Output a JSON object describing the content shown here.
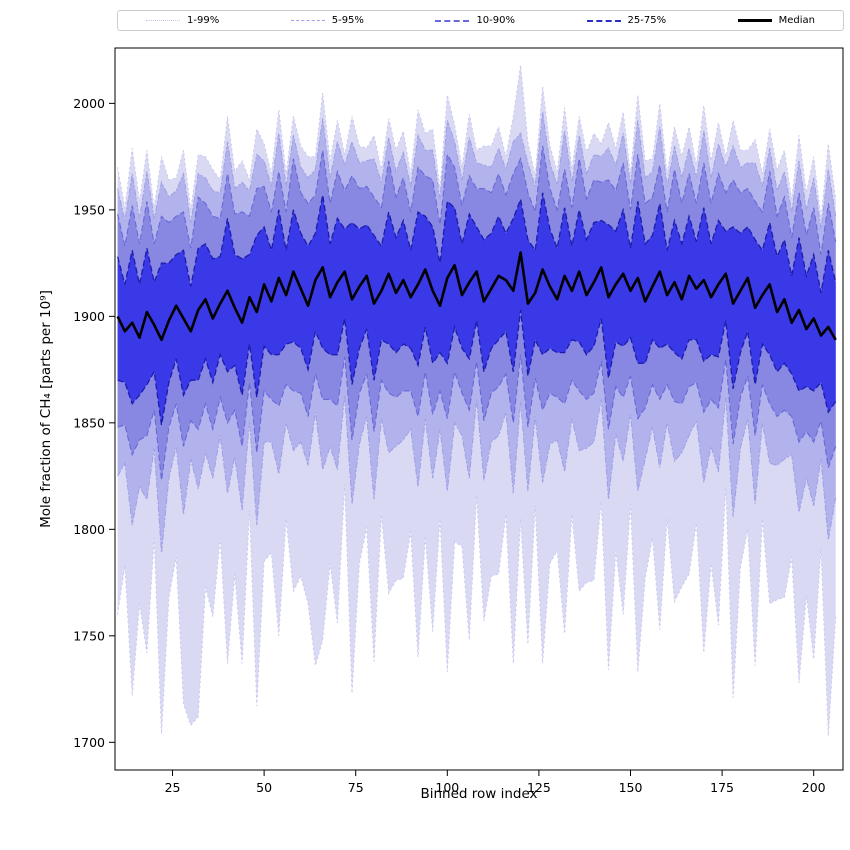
{
  "legend": {
    "entries": [
      {
        "label": "1-99%",
        "color": "#c6c6ef",
        "style": "dotted",
        "thickness": 1
      },
      {
        "label": "5-95%",
        "color": "#9f9fe6",
        "style": "dashed",
        "thickness": 1
      },
      {
        "label": "10-90%",
        "color": "#6868d8",
        "style": "dashed",
        "thickness": 2
      },
      {
        "label": "25-75%",
        "color": "#2c2cc8",
        "style": "dashed",
        "thickness": 2
      },
      {
        "label": "Median",
        "color": "#000000",
        "style": "solid",
        "thickness": 3
      }
    ]
  },
  "chart_data": {
    "type": "area",
    "title": "",
    "xlabel": "Binned row index",
    "ylabel": "Mole fraction of CH₄ [parts per 10⁹]",
    "grid": false,
    "legend_position": "top",
    "xlim": [
      9.3,
      208
    ],
    "ylim": [
      1687,
      2026
    ],
    "x_ticks": [
      25,
      50,
      75,
      100,
      125,
      150,
      175,
      200
    ],
    "y_ticks": [
      1700,
      1750,
      1800,
      1850,
      1900,
      1950,
      2000
    ],
    "x": [
      10,
      12,
      14,
      16,
      18,
      20,
      22,
      24,
      26,
      28,
      30,
      32,
      34,
      36,
      38,
      40,
      42,
      44,
      46,
      48,
      50,
      52,
      54,
      56,
      58,
      60,
      62,
      64,
      66,
      68,
      70,
      72,
      74,
      76,
      78,
      80,
      82,
      84,
      86,
      88,
      90,
      92,
      94,
      96,
      98,
      100,
      102,
      104,
      106,
      108,
      110,
      112,
      114,
      116,
      118,
      120,
      122,
      124,
      126,
      128,
      130,
      132,
      134,
      136,
      138,
      140,
      142,
      144,
      146,
      148,
      150,
      152,
      154,
      156,
      158,
      160,
      162,
      164,
      166,
      168,
      170,
      172,
      174,
      176,
      178,
      180,
      182,
      184,
      186,
      188,
      190,
      192,
      194,
      196,
      198,
      200,
      202,
      204,
      206
    ],
    "bands": [
      {
        "name": "1-99%",
        "fill": "#d9d9f4",
        "edge": "#c6c6ef",
        "dash": "2 3",
        "edge_width": 1,
        "lower": [
          1760,
          1783,
          1722,
          1765,
          1742,
          1796,
          1704,
          1768,
          1787,
          1718,
          1708,
          1712,
          1773,
          1759,
          1796,
          1737,
          1779,
          1737,
          1809,
          1717,
          1785,
          1789,
          1750,
          1805,
          1771,
          1778,
          1765,
          1736,
          1748,
          1784,
          1756,
          1821,
          1723,
          1784,
          1801,
          1738,
          1807,
          1770,
          1776,
          1777,
          1799,
          1740,
          1797,
          1752,
          1805,
          1733,
          1794,
          1792,
          1748,
          1816,
          1757,
          1778,
          1779,
          1807,
          1737,
          1805,
          1746,
          1811,
          1737,
          1784,
          1790,
          1751,
          1807,
          1771,
          1775,
          1776,
          1813,
          1734,
          1790,
          1760,
          1812,
          1733,
          1777,
          1796,
          1753,
          1805,
          1766,
          1773,
          1779,
          1803,
          1742,
          1784,
          1755,
          1820,
          1721,
          1782,
          1800,
          1736,
          1805,
          1765,
          1767,
          1768,
          1787,
          1728,
          1769,
          1739,
          1791,
          1703,
          1759
        ],
        "upper": [
          1970,
          1951,
          1979,
          1954,
          1978,
          1951,
          1975,
          1964,
          1965,
          1978,
          1950,
          1976,
          1975,
          1969,
          1964,
          1994,
          1968,
          1973,
          1964,
          1988,
          1981,
          1967,
          1997,
          1967,
          1994,
          1980,
          1975,
          1975,
          2005,
          1973,
          1992,
          1976,
          1994,
          1980,
          1979,
          1985,
          1969,
          1993,
          1978,
          1987,
          1967,
          1997,
          1986,
          1988,
          1960,
          2004,
          1990,
          1970,
          1995,
          1978,
          1980,
          1980,
          1989,
          1975,
          1994,
          2018,
          1982,
          1966,
          2008,
          1980,
          1968,
          1998,
          1969,
          1994,
          1977,
          1986,
          1981,
          1991,
          1979,
          1996,
          1967,
          2004,
          1973,
          1974,
          2000,
          1967,
          1989,
          1975,
          1989,
          1971,
          1999,
          1973,
          1991,
          1975,
          1992,
          1978,
          1978,
          1983,
          1967,
          1988,
          1969,
          1978,
          1955,
          1985,
          1958,
          1975,
          1946,
          1981,
          1955
        ]
      },
      {
        "name": "5-95%",
        "fill": "#b2b2ec",
        "edge": "#9f9fe6",
        "dash": "6 2 2 2",
        "edge_width": 1,
        "lower": [
          1825,
          1831,
          1802,
          1820,
          1814,
          1838,
          1789,
          1824,
          1839,
          1807,
          1833,
          1819,
          1836,
          1824,
          1844,
          1817,
          1834,
          1809,
          1851,
          1802,
          1841,
          1841,
          1826,
          1850,
          1837,
          1841,
          1830,
          1855,
          1828,
          1839,
          1828,
          1863,
          1812,
          1840,
          1853,
          1814,
          1852,
          1836,
          1839,
          1842,
          1847,
          1820,
          1852,
          1824,
          1847,
          1818,
          1850,
          1844,
          1824,
          1861,
          1823,
          1841,
          1844,
          1855,
          1817,
          1860,
          1818,
          1853,
          1822,
          1840,
          1842,
          1827,
          1852,
          1837,
          1838,
          1841,
          1861,
          1814,
          1845,
          1832,
          1854,
          1818,
          1833,
          1848,
          1829,
          1850,
          1832,
          1836,
          1844,
          1851,
          1822,
          1839,
          1827,
          1862,
          1806,
          1838,
          1852,
          1812,
          1850,
          1831,
          1830,
          1833,
          1835,
          1808,
          1824,
          1811,
          1833,
          1795,
          1815
        ],
        "upper": [
          1960,
          1945,
          1967,
          1946,
          1968,
          1946,
          1963,
          1956,
          1959,
          1967,
          1944,
          1967,
          1965,
          1959,
          1958,
          1982,
          1960,
          1963,
          1959,
          1976,
          1973,
          1961,
          1986,
          1961,
          1985,
          1970,
          1965,
          1969,
          1993,
          1965,
          1982,
          1971,
          1982,
          1972,
          1973,
          1974,
          1963,
          1984,
          1968,
          1977,
          1961,
          1985,
          1978,
          1978,
          1955,
          1992,
          1982,
          1964,
          1984,
          1972,
          1971,
          1970,
          1979,
          1969,
          1982,
          1986,
          1972,
          1961,
          1996,
          1972,
          1962,
          1987,
          1963,
          1985,
          1967,
          1976,
          1975,
          1979,
          1971,
          1986,
          1962,
          1992,
          1965,
          1968,
          1989,
          1961,
          1980,
          1965,
          1979,
          1965,
          1987,
          1965,
          1981,
          1970,
          1980,
          1970,
          1972,
          1972,
          1961,
          1979,
          1959,
          1968,
          1949,
          1973,
          1950,
          1965,
          1941,
          1969,
          1947
        ]
      },
      {
        "name": "10-90%",
        "fill": "#8888e2",
        "edge": "#6868d8",
        "dash": "6 3",
        "edge_width": 1.1,
        "lower": [
          1848,
          1849,
          1835,
          1842,
          1844,
          1856,
          1823,
          1848,
          1859,
          1839,
          1851,
          1847,
          1859,
          1847,
          1862,
          1850,
          1856,
          1839,
          1869,
          1836,
          1865,
          1861,
          1858,
          1868,
          1865,
          1864,
          1853,
          1873,
          1861,
          1861,
          1858,
          1881,
          1842,
          1864,
          1873,
          1846,
          1870,
          1864,
          1862,
          1865,
          1865,
          1853,
          1874,
          1854,
          1865,
          1852,
          1874,
          1864,
          1856,
          1879,
          1851,
          1864,
          1867,
          1873,
          1850,
          1882,
          1848,
          1871,
          1856,
          1864,
          1862,
          1859,
          1870,
          1865,
          1861,
          1864,
          1879,
          1847,
          1867,
          1862,
          1872,
          1852,
          1857,
          1868,
          1861,
          1868,
          1860,
          1859,
          1867,
          1869,
          1855,
          1861,
          1857,
          1880,
          1840,
          1862,
          1872,
          1844,
          1868,
          1859,
          1853,
          1856,
          1853,
          1841,
          1846,
          1841,
          1851,
          1829,
          1839
        ],
        "upper": [
          1948,
          1933,
          1952,
          1934,
          1954,
          1934,
          1947,
          1944,
          1947,
          1949,
          1932,
          1956,
          1953,
          1947,
          1946,
          1967,
          1948,
          1949,
          1947,
          1960,
          1961,
          1949,
          1968,
          1949,
          1974,
          1958,
          1953,
          1957,
          1978,
          1953,
          1968,
          1959,
          1966,
          1960,
          1961,
          1956,
          1951,
          1973,
          1956,
          1965,
          1949,
          1970,
          1966,
          1964,
          1943,
          1976,
          1970,
          1952,
          1966,
          1960,
          1960,
          1958,
          1967,
          1957,
          1967,
          1974,
          1958,
          1949,
          1980,
          1960,
          1950,
          1969,
          1951,
          1974,
          1955,
          1964,
          1963,
          1964,
          1959,
          1972,
          1950,
          1976,
          1953,
          1956,
          1971,
          1949,
          1969,
          1953,
          1967,
          1953,
          1972,
          1953,
          1967,
          1958,
          1964,
          1958,
          1960,
          1954,
          1949,
          1968,
          1947,
          1956,
          1937,
          1958,
          1938,
          1951,
          1929,
          1953,
          1935
        ]
      },
      {
        "name": "25-75%",
        "fill": "#3939e8",
        "edge": "#1c1caa",
        "dash": "6 3",
        "edge_width": 1.3,
        "lower": [
          1870,
          1869,
          1859,
          1863,
          1868,
          1874,
          1849,
          1869,
          1880,
          1863,
          1870,
          1870,
          1880,
          1869,
          1882,
          1874,
          1877,
          1863,
          1887,
          1862,
          1886,
          1882,
          1882,
          1887,
          1888,
          1885,
          1875,
          1893,
          1885,
          1882,
          1882,
          1899,
          1868,
          1885,
          1894,
          1870,
          1889,
          1887,
          1883,
          1887,
          1885,
          1877,
          1895,
          1878,
          1883,
          1878,
          1895,
          1885,
          1880,
          1898,
          1874,
          1885,
          1889,
          1893,
          1874,
          1903,
          1872,
          1889,
          1882,
          1885,
          1883,
          1883,
          1889,
          1888,
          1882,
          1886,
          1899,
          1871,
          1888,
          1886,
          1890,
          1878,
          1878,
          1889,
          1885,
          1887,
          1883,
          1880,
          1889,
          1889,
          1879,
          1882,
          1881,
          1898,
          1866,
          1883,
          1893,
          1868,
          1887,
          1882,
          1874,
          1878,
          1873,
          1865,
          1867,
          1865,
          1869,
          1855,
          1860
        ],
        "upper": [
          1928,
          1915,
          1931,
          1915,
          1932,
          1916,
          1925,
          1925,
          1929,
          1931,
          1914,
          1932,
          1934,
          1927,
          1928,
          1946,
          1929,
          1927,
          1929,
          1938,
          1942,
          1931,
          1950,
          1931,
          1950,
          1939,
          1933,
          1939,
          1957,
          1934,
          1946,
          1941,
          1944,
          1941,
          1943,
          1938,
          1933,
          1949,
          1937,
          1945,
          1931,
          1949,
          1947,
          1942,
          1925,
          1954,
          1951,
          1934,
          1948,
          1942,
          1936,
          1939,
          1947,
          1939,
          1946,
          1955,
          1936,
          1931,
          1958,
          1941,
          1932,
          1951,
          1933,
          1950,
          1936,
          1944,
          1945,
          1943,
          1940,
          1950,
          1932,
          1954,
          1934,
          1938,
          1953,
          1931,
          1945,
          1934,
          1947,
          1935,
          1951,
          1934,
          1945,
          1940,
          1942,
          1939,
          1942,
          1936,
          1931,
          1944,
          1928,
          1936,
          1919,
          1937,
          1919,
          1929,
          1911,
          1931,
          1916
        ]
      }
    ],
    "median": {
      "name": "Median",
      "color": "#000000",
      "width": 2.6,
      "values": [
        1900,
        1893,
        1897,
        1890,
        1902,
        1896,
        1889,
        1898,
        1905,
        1899,
        1893,
        1903,
        1908,
        1899,
        1906,
        1912,
        1904,
        1897,
        1909,
        1902,
        1915,
        1907,
        1918,
        1910,
        1921,
        1913,
        1905,
        1917,
        1923,
        1909,
        1916,
        1921,
        1908,
        1914,
        1919,
        1906,
        1912,
        1920,
        1911,
        1917,
        1909,
        1915,
        1922,
        1912,
        1905,
        1918,
        1924,
        1910,
        1916,
        1921,
        1907,
        1913,
        1919,
        1917,
        1912,
        1930,
        1906,
        1911,
        1922,
        1914,
        1908,
        1919,
        1912,
        1921,
        1910,
        1916,
        1923,
        1909,
        1915,
        1920,
        1912,
        1918,
        1907,
        1914,
        1921,
        1910,
        1916,
        1908,
        1919,
        1913,
        1917,
        1909,
        1915,
        1920,
        1906,
        1912,
        1918,
        1904,
        1910,
        1915,
        1902,
        1908,
        1897,
        1903,
        1894,
        1899,
        1891,
        1895,
        1889
      ]
    }
  }
}
